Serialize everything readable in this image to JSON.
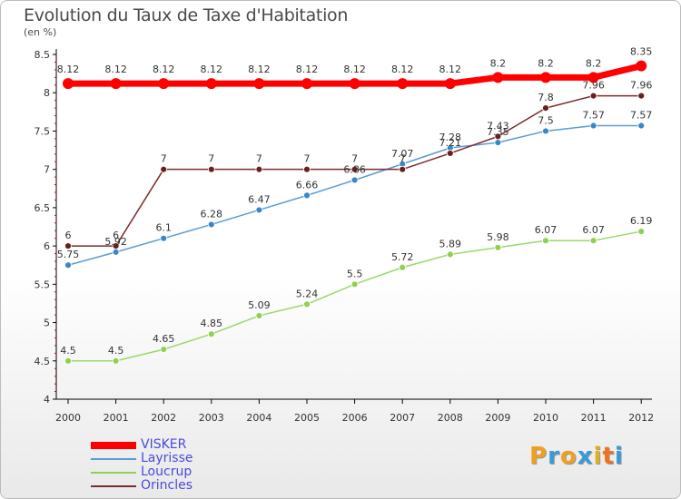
{
  "header": {
    "title": "Evolution du Taux de Taxe d'Habitation",
    "unit": "(en %)"
  },
  "logo": {
    "letters": [
      "P",
      "r",
      "o",
      "x",
      "i",
      "t",
      "i"
    ],
    "colors": [
      "#f0a020",
      "#3a9ad9",
      "#f0a020",
      "#3a9ad9",
      "#e0b020",
      "#f07020",
      "#3a9ad9"
    ]
  },
  "chart_data": {
    "type": "line",
    "title": "Evolution du Taux de Taxe d'Habitation",
    "ylabel": "(en %)",
    "xlabel": "",
    "x": [
      "2000",
      "2001",
      "2002",
      "2003",
      "2004",
      "2005",
      "2006",
      "2007",
      "2008",
      "2009",
      "2010",
      "2011",
      "2012"
    ],
    "ylim": [
      4,
      8.5
    ],
    "yticks": [
      "4",
      "4.5",
      "5",
      "5.5",
      "6",
      "6.5",
      "7",
      "7.5",
      "8",
      "8.5"
    ],
    "grid": false,
    "legend_position": "bottom-left",
    "series": [
      {
        "name": "VISKER",
        "color": "#ff0000",
        "values": [
          8.12,
          8.12,
          8.12,
          8.12,
          8.12,
          8.12,
          8.12,
          8.12,
          8.12,
          8.2,
          8.2,
          8.2,
          8.35
        ],
        "labels": [
          "8.12",
          "8.12",
          "8.12",
          "8.12",
          "8.12",
          "8.12",
          "8.12",
          "8.12",
          "8.12",
          "8.2",
          "8.2",
          "8.2",
          "8.35"
        ]
      },
      {
        "name": "Layrisse",
        "color": "#5a9bd5",
        "values": [
          5.75,
          5.92,
          6.1,
          6.28,
          6.47,
          6.66,
          6.86,
          7.07,
          7.28,
          7.35,
          7.5,
          7.57,
          7.57
        ],
        "labels": [
          "5.75",
          "5.92",
          "6.1",
          "6.28",
          "6.47",
          "6.66",
          "6.86",
          "7.07",
          "7.28",
          "7.35",
          "7.5",
          "7.57",
          "7.57"
        ]
      },
      {
        "name": "Loucrup",
        "color": "#8fd14f",
        "values": [
          4.5,
          4.5,
          4.65,
          4.85,
          5.09,
          5.24,
          5.5,
          5.72,
          5.89,
          5.98,
          6.07,
          6.07,
          6.19
        ],
        "labels": [
          "4.5",
          "4.5",
          "4.65",
          "4.85",
          "5.09",
          "5.24",
          "5.5",
          "5.72",
          "5.89",
          "5.98",
          "6.07",
          "6.07",
          "6.19"
        ]
      },
      {
        "name": "Orincles",
        "color": "#7a2b2b",
        "values": [
          6,
          6,
          7,
          7,
          7,
          7,
          7,
          7,
          7.21,
          7.43,
          7.8,
          7.96,
          7.96
        ],
        "labels": [
          "6",
          "6",
          "7",
          "7",
          "7",
          "7",
          "7",
          "7",
          "7.21",
          "7.43",
          "7.8",
          "7.96",
          "7.96"
        ]
      }
    ]
  }
}
